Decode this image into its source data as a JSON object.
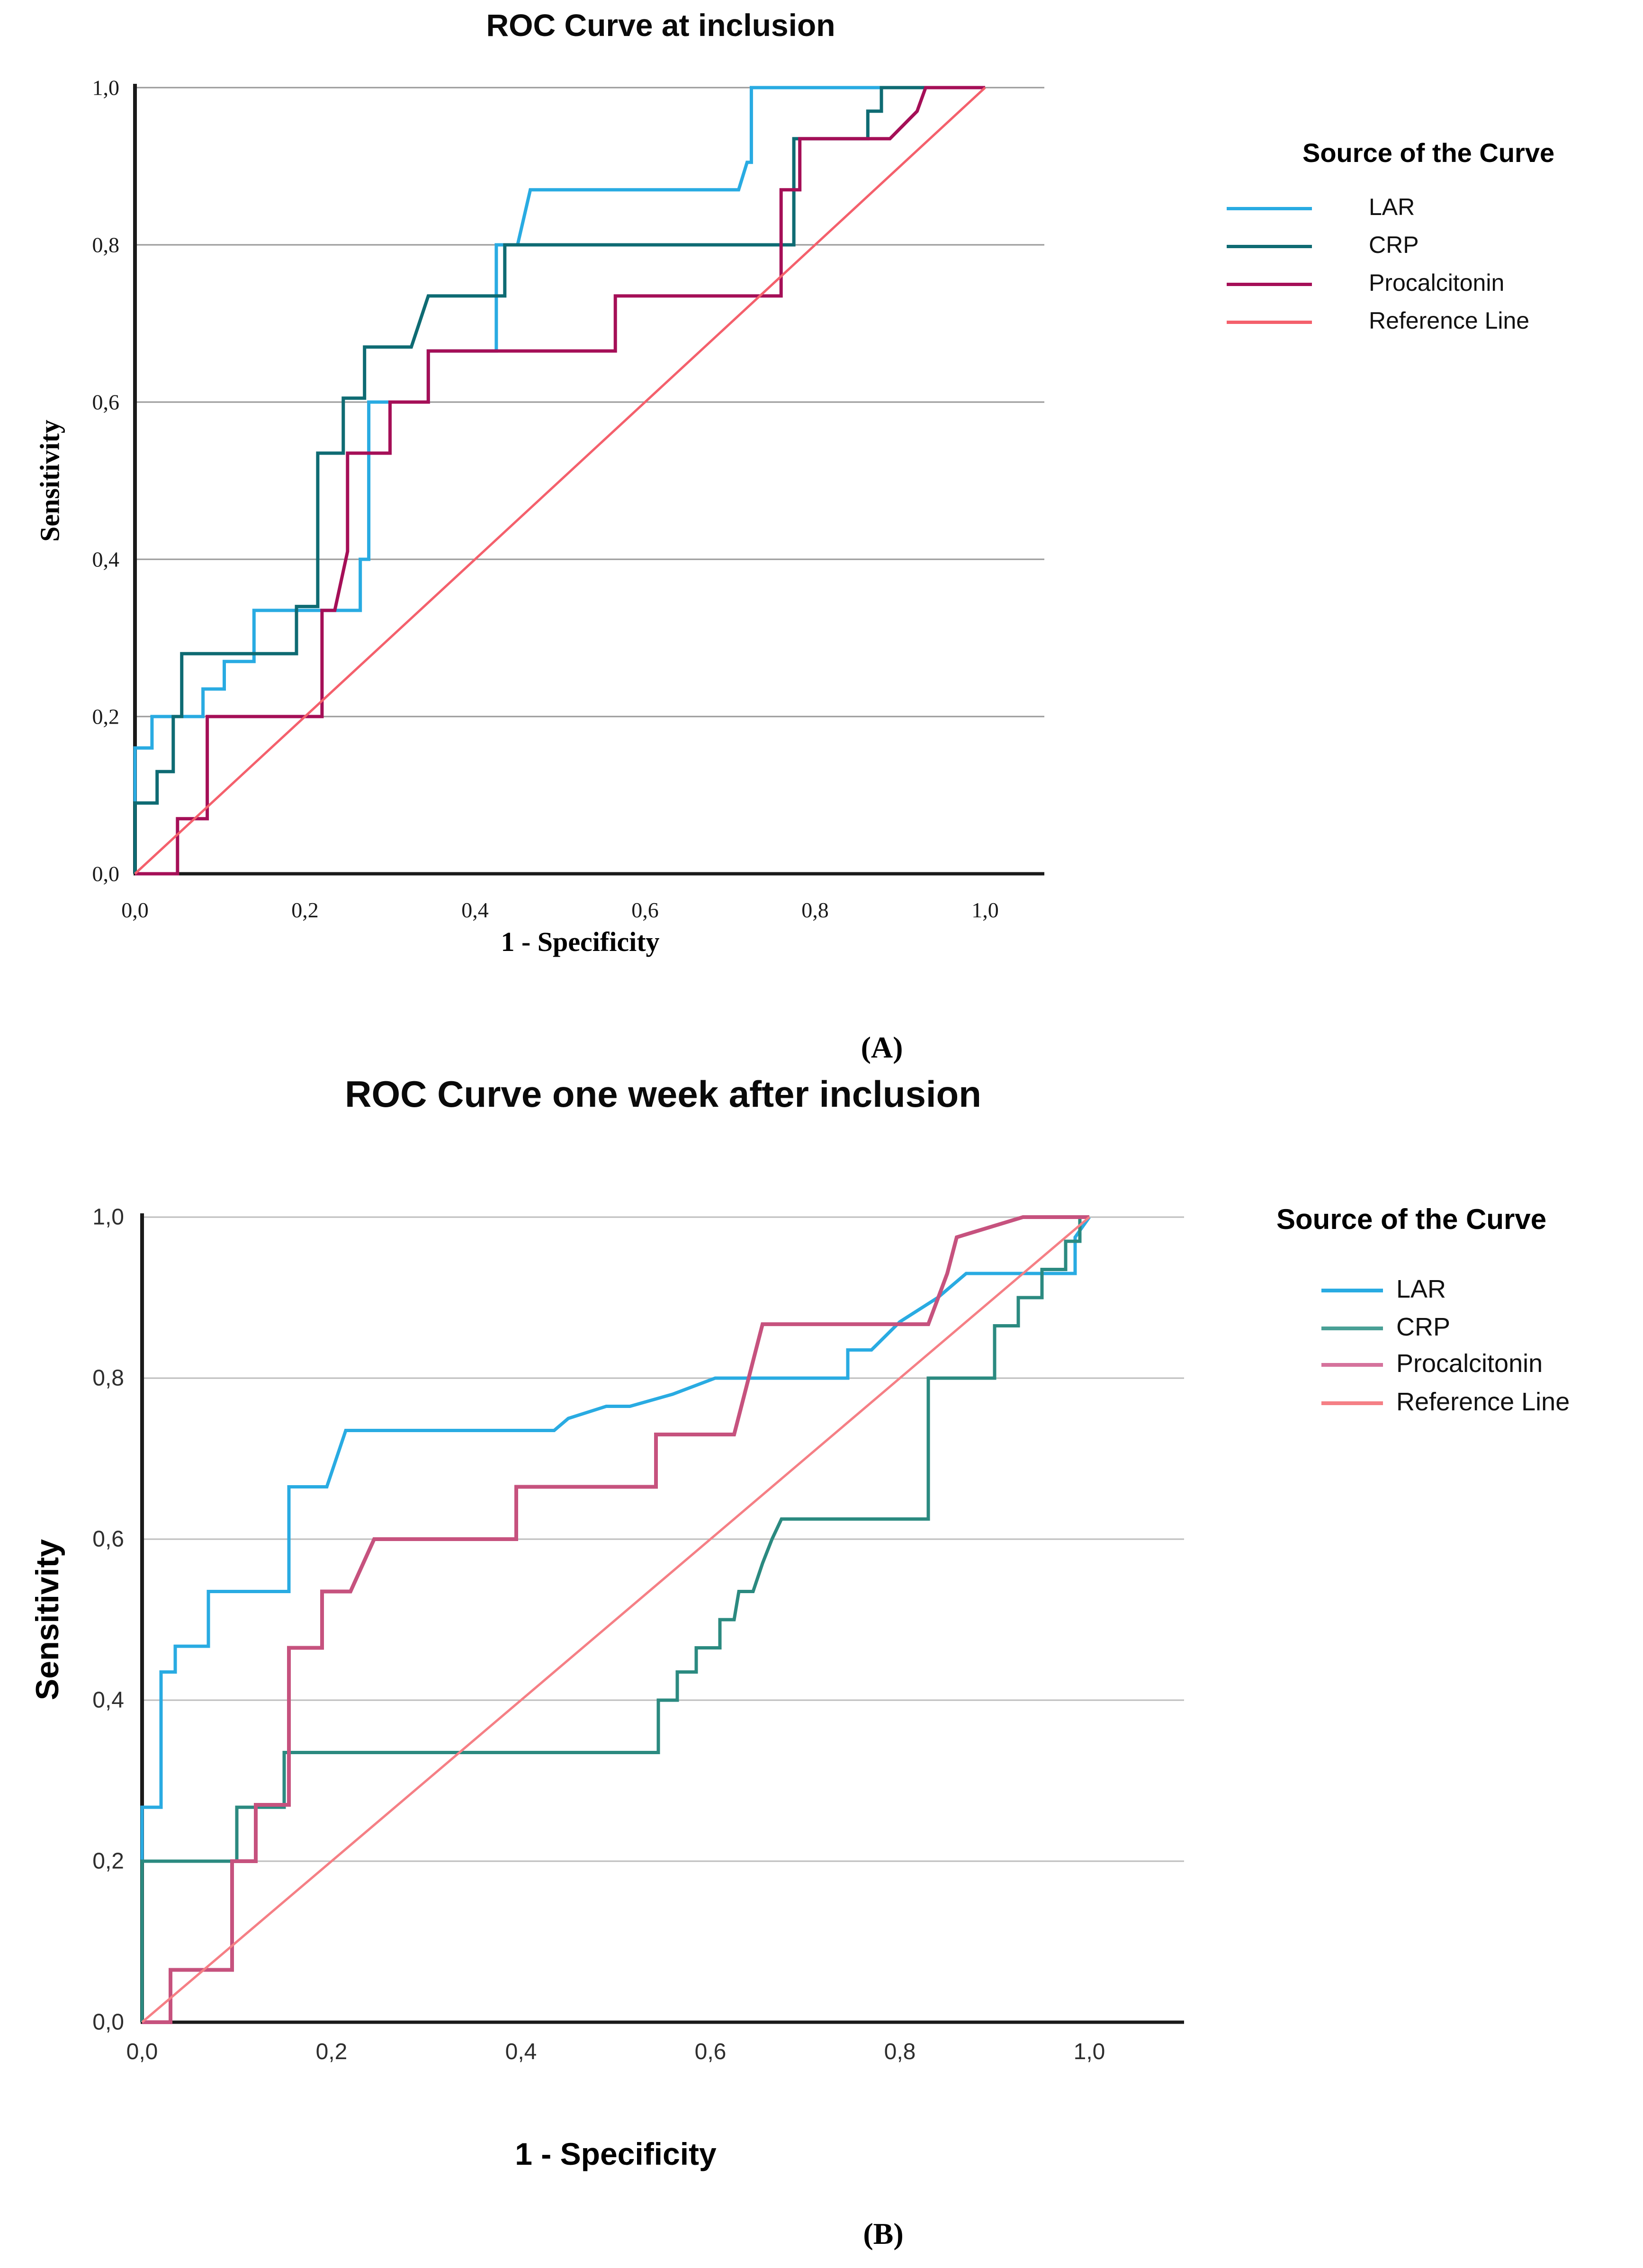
{
  "page": {
    "background": "#ffffff"
  },
  "chart_data": [
    {
      "id": "A",
      "type": "line",
      "title": "ROC Curve at inclusion",
      "panel_label": "(A)",
      "xlabel": "1 - Specificity",
      "ylabel": "Sensitivity",
      "xlim": [
        0,
        1
      ],
      "ylim": [
        0,
        1
      ],
      "grid": "horizontal",
      "x_ticks": [
        {
          "value": 0.0,
          "label": "0,0"
        },
        {
          "value": 0.2,
          "label": "0,2"
        },
        {
          "value": 0.4,
          "label": "0,4"
        },
        {
          "value": 0.6,
          "label": "0,6"
        },
        {
          "value": 0.8,
          "label": "0,8"
        },
        {
          "value": 1.0,
          "label": "1,0"
        }
      ],
      "y_ticks": [
        {
          "value": 0.0,
          "label": "0,0"
        },
        {
          "value": 0.2,
          "label": "0,2"
        },
        {
          "value": 0.4,
          "label": "0,4"
        },
        {
          "value": 0.6,
          "label": "0,6"
        },
        {
          "value": 0.8,
          "label": "0,8"
        },
        {
          "value": 1.0,
          "label": "1,0"
        }
      ],
      "legend": {
        "title": "Source of the Curve",
        "position": "right",
        "items": [
          {
            "label": "LAR",
            "color": "#29abe2"
          },
          {
            "label": "CRP",
            "color": "#0e6b73"
          },
          {
            "label": "Procalcitonin",
            "color": "#a50f57"
          },
          {
            "label": "Reference Line",
            "color": "#f4606c"
          }
        ]
      },
      "series": [
        {
          "name": "LAR",
          "color": "#29abe2",
          "width": 7,
          "points": [
            [
              0,
              0
            ],
            [
              0,
              0.16
            ],
            [
              0.02,
              0.16
            ],
            [
              0.02,
              0.2
            ],
            [
              0.08,
              0.2
            ],
            [
              0.08,
              0.235
            ],
            [
              0.105,
              0.235
            ],
            [
              0.105,
              0.27
            ],
            [
              0.14,
              0.27
            ],
            [
              0.14,
              0.335
            ],
            [
              0.265,
              0.335
            ],
            [
              0.265,
              0.4
            ],
            [
              0.275,
              0.4
            ],
            [
              0.275,
              0.6
            ],
            [
              0.345,
              0.6
            ],
            [
              0.345,
              0.665
            ],
            [
              0.425,
              0.665
            ],
            [
              0.425,
              0.8
            ],
            [
              0.45,
              0.8
            ],
            [
              0.465,
              0.87
            ],
            [
              0.71,
              0.87
            ],
            [
              0.72,
              0.905
            ],
            [
              0.725,
              0.905
            ],
            [
              0.725,
              1.0
            ],
            [
              1,
              1
            ]
          ]
        },
        {
          "name": "CRP",
          "color": "#0e6b73",
          "width": 7,
          "points": [
            [
              0,
              0
            ],
            [
              0,
              0.09
            ],
            [
              0.026,
              0.09
            ],
            [
              0.026,
              0.13
            ],
            [
              0.045,
              0.13
            ],
            [
              0.045,
              0.2
            ],
            [
              0.055,
              0.2
            ],
            [
              0.055,
              0.28
            ],
            [
              0.19,
              0.28
            ],
            [
              0.19,
              0.34
            ],
            [
              0.215,
              0.34
            ],
            [
              0.215,
              0.535
            ],
            [
              0.245,
              0.535
            ],
            [
              0.245,
              0.605
            ],
            [
              0.27,
              0.605
            ],
            [
              0.27,
              0.67
            ],
            [
              0.325,
              0.67
            ],
            [
              0.345,
              0.735
            ],
            [
              0.435,
              0.735
            ],
            [
              0.435,
              0.8
            ],
            [
              0.775,
              0.8
            ],
            [
              0.775,
              0.935
            ],
            [
              0.862,
              0.935
            ],
            [
              0.862,
              0.97
            ],
            [
              0.878,
              0.97
            ],
            [
              0.878,
              1.0
            ],
            [
              1,
              1
            ]
          ]
        },
        {
          "name": "Procalcitonin",
          "color": "#a50f57",
          "width": 7,
          "points": [
            [
              0,
              0
            ],
            [
              0.05,
              0
            ],
            [
              0.05,
              0.07
            ],
            [
              0.085,
              0.07
            ],
            [
              0.085,
              0.2
            ],
            [
              0.22,
              0.2
            ],
            [
              0.22,
              0.335
            ],
            [
              0.235,
              0.335
            ],
            [
              0.25,
              0.41
            ],
            [
              0.25,
              0.535
            ],
            [
              0.3,
              0.535
            ],
            [
              0.3,
              0.6
            ],
            [
              0.345,
              0.6
            ],
            [
              0.345,
              0.665
            ],
            [
              0.565,
              0.665
            ],
            [
              0.565,
              0.735
            ],
            [
              0.76,
              0.735
            ],
            [
              0.76,
              0.87
            ],
            [
              0.782,
              0.87
            ],
            [
              0.782,
              0.935
            ],
            [
              0.888,
              0.935
            ],
            [
              0.92,
              0.97
            ],
            [
              0.93,
              1.0
            ],
            [
              1,
              1
            ]
          ]
        },
        {
          "name": "Reference Line",
          "color": "#f4606c",
          "width": 5,
          "points": [
            [
              0,
              0
            ],
            [
              1,
              1
            ]
          ]
        }
      ]
    },
    {
      "id": "B",
      "type": "line",
      "title": "ROC Curve one week after inclusion",
      "panel_label": "(B)",
      "xlabel": "1 - Specificity",
      "ylabel": "Sensitivity",
      "xlim": [
        0,
        1
      ],
      "ylim": [
        0,
        1
      ],
      "grid": "horizontal",
      "x_ticks": [
        {
          "value": 0.0,
          "label": "0,0"
        },
        {
          "value": 0.2,
          "label": "0,2"
        },
        {
          "value": 0.4,
          "label": "0,4"
        },
        {
          "value": 0.6,
          "label": "0,6"
        },
        {
          "value": 0.8,
          "label": "0,8"
        },
        {
          "value": 1.0,
          "label": "1,0"
        }
      ],
      "y_ticks": [
        {
          "value": 0.0,
          "label": "0,0"
        },
        {
          "value": 0.2,
          "label": "0,2"
        },
        {
          "value": 0.4,
          "label": "0,4"
        },
        {
          "value": 0.6,
          "label": "0,6"
        },
        {
          "value": 0.8,
          "label": "0,8"
        },
        {
          "value": 1.0,
          "label": "1,0"
        }
      ],
      "legend": {
        "title": "Source of the  Curve",
        "position": "right",
        "items": [
          {
            "label": "LAR",
            "color": "#29abe2"
          },
          {
            "label": "CRP",
            "color": "#4aa096"
          },
          {
            "label": "Procalcitonin",
            "color": "#d5729c"
          },
          {
            "label": "Reference Line",
            "color": "#f57f85"
          }
        ]
      },
      "series": [
        {
          "name": "LAR",
          "color": "#29abe2",
          "width": 7,
          "points": [
            [
              0,
              0
            ],
            [
              0,
              0.267
            ],
            [
              0.02,
              0.267
            ],
            [
              0.02,
              0.435
            ],
            [
              0.035,
              0.435
            ],
            [
              0.035,
              0.467
            ],
            [
              0.07,
              0.467
            ],
            [
              0.07,
              0.535
            ],
            [
              0.155,
              0.535
            ],
            [
              0.155,
              0.665
            ],
            [
              0.195,
              0.665
            ],
            [
              0.215,
              0.735
            ],
            [
              0.435,
              0.735
            ],
            [
              0.45,
              0.75
            ],
            [
              0.49,
              0.765
            ],
            [
              0.515,
              0.765
            ],
            [
              0.56,
              0.78
            ],
            [
              0.605,
              0.8
            ],
            [
              0.745,
              0.8
            ],
            [
              0.745,
              0.835
            ],
            [
              0.77,
              0.835
            ],
            [
              0.8,
              0.87
            ],
            [
              0.84,
              0.9
            ],
            [
              0.87,
              0.93
            ],
            [
              0.985,
              0.93
            ],
            [
              0.985,
              0.975
            ],
            [
              1,
              1
            ]
          ]
        },
        {
          "name": "CRP",
          "color": "#2b8a80",
          "width": 7,
          "points": [
            [
              0,
              0
            ],
            [
              0,
              0.2
            ],
            [
              0.1,
              0.2
            ],
            [
              0.1,
              0.267
            ],
            [
              0.15,
              0.267
            ],
            [
              0.15,
              0.335
            ],
            [
              0.545,
              0.335
            ],
            [
              0.545,
              0.4
            ],
            [
              0.565,
              0.4
            ],
            [
              0.565,
              0.435
            ],
            [
              0.585,
              0.435
            ],
            [
              0.585,
              0.465
            ],
            [
              0.61,
              0.465
            ],
            [
              0.61,
              0.5
            ],
            [
              0.625,
              0.5
            ],
            [
              0.63,
              0.535
            ],
            [
              0.645,
              0.535
            ],
            [
              0.655,
              0.57
            ],
            [
              0.665,
              0.6
            ],
            [
              0.675,
              0.625
            ],
            [
              0.83,
              0.625
            ],
            [
              0.83,
              0.8
            ],
            [
              0.9,
              0.8
            ],
            [
              0.9,
              0.865
            ],
            [
              0.925,
              0.865
            ],
            [
              0.925,
              0.9
            ],
            [
              0.95,
              0.9
            ],
            [
              0.95,
              0.935
            ],
            [
              0.975,
              0.935
            ],
            [
              0.975,
              0.97
            ],
            [
              0.99,
              0.97
            ],
            [
              0.99,
              1.0
            ],
            [
              1,
              1
            ]
          ]
        },
        {
          "name": "Procalcitonin",
          "color": "#c6527e",
          "width": 8,
          "points": [
            [
              0,
              0
            ],
            [
              0.03,
              0
            ],
            [
              0.03,
              0.065
            ],
            [
              0.095,
              0.065
            ],
            [
              0.095,
              0.2
            ],
            [
              0.12,
              0.2
            ],
            [
              0.12,
              0.27
            ],
            [
              0.155,
              0.27
            ],
            [
              0.155,
              0.465
            ],
            [
              0.19,
              0.465
            ],
            [
              0.19,
              0.535
            ],
            [
              0.22,
              0.535
            ],
            [
              0.245,
              0.6
            ],
            [
              0.395,
              0.6
            ],
            [
              0.395,
              0.665
            ],
            [
              0.5425,
              0.665
            ],
            [
              0.5425,
              0.73
            ],
            [
              0.625,
              0.73
            ],
            [
              0.655,
              0.867
            ],
            [
              0.83,
              0.867
            ],
            [
              0.85,
              0.93
            ],
            [
              0.86,
              0.975
            ],
            [
              0.93,
              1.0
            ],
            [
              1,
              1
            ]
          ]
        },
        {
          "name": "Reference Line",
          "color": "#f57f85",
          "width": 5,
          "points": [
            [
              0,
              0
            ],
            [
              1,
              1
            ]
          ]
        }
      ]
    }
  ]
}
